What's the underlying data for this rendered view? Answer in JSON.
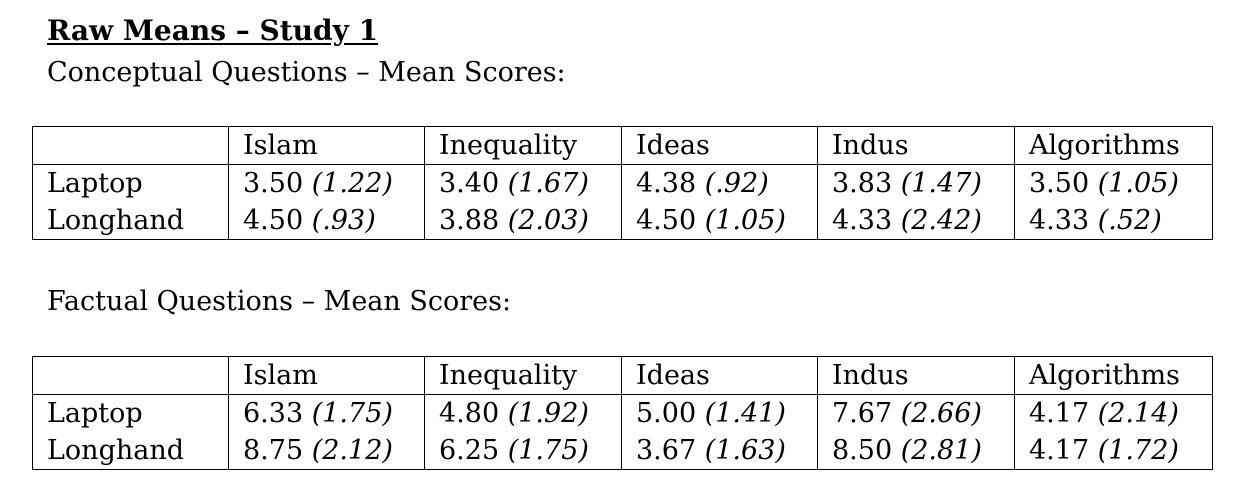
{
  "title": "Raw Means – Study 1",
  "sections": [
    {
      "heading": "Conceptual Questions – Mean Scores:",
      "columns": [
        "",
        "Islam",
        "Inequality",
        "Ideas",
        "Indus",
        "Algorithms"
      ],
      "rows": [
        {
          "label": "Laptop",
          "cells": [
            {
              "mean": "3.50",
              "sd": "(1.22)"
            },
            {
              "mean": "3.40",
              "sd": "(1.67)"
            },
            {
              "mean": "4.38",
              "sd": "(.92)"
            },
            {
              "mean": "3.83",
              "sd": "(1.47)"
            },
            {
              "mean": "3.50",
              "sd": "(1.05)"
            }
          ]
        },
        {
          "label": "Longhand",
          "cells": [
            {
              "mean": "4.50",
              "sd": "(.93)"
            },
            {
              "mean": "3.88",
              "sd": "(2.03)"
            },
            {
              "mean": "4.50",
              "sd": "(1.05)"
            },
            {
              "mean": "4.33",
              "sd": "(2.42)"
            },
            {
              "mean": "4.33",
              "sd": "(.52)"
            }
          ]
        }
      ]
    },
    {
      "heading": "Factual Questions – Mean Scores:",
      "columns": [
        "",
        "Islam",
        "Inequality",
        "Ideas",
        "Indus",
        "Algorithms"
      ],
      "rows": [
        {
          "label": "Laptop",
          "cells": [
            {
              "mean": "6.33",
              "sd": "(1.75)"
            },
            {
              "mean": "4.80",
              "sd": "(1.92)"
            },
            {
              "mean": "5.00",
              "sd": "(1.41)"
            },
            {
              "mean": "7.67",
              "sd": "(2.66)"
            },
            {
              "mean": "4.17",
              "sd": "(2.14)"
            }
          ]
        },
        {
          "label": "Longhand",
          "cells": [
            {
              "mean": "8.75",
              "sd": "(2.12)"
            },
            {
              "mean": "6.25",
              "sd": "(1.75)"
            },
            {
              "mean": "3.67",
              "sd": "(1.63)"
            },
            {
              "mean": "8.50",
              "sd": "(2.81)"
            },
            {
              "mean": "4.17",
              "sd": "(1.72)"
            }
          ]
        }
      ]
    }
  ]
}
